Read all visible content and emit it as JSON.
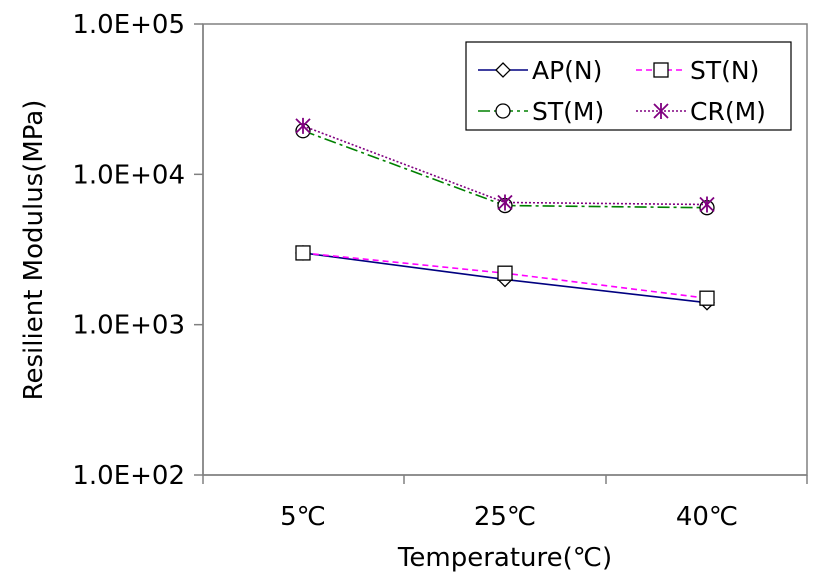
{
  "chart_data": {
    "type": "line",
    "title": "",
    "xlabel": "Temperature(℃)",
    "ylabel": "Resilient Modulus(MPa)",
    "yscale": "log",
    "ylim": [
      100,
      100000
    ],
    "categories": [
      "5℃",
      "25℃",
      "40℃"
    ],
    "y_tick_labels": [
      "1.0E+02",
      "1.0E+03",
      "1.0E+04",
      "1.0E+05"
    ],
    "y_tick_values": [
      100,
      1000,
      10000,
      100000
    ],
    "legend_position": "top-right",
    "series": [
      {
        "name": "AP(N)",
        "values": [
          3000,
          2000,
          1400
        ],
        "color": "#000080",
        "marker": "diamond",
        "dash": "solid"
      },
      {
        "name": "ST(N)",
        "values": [
          3000,
          2200,
          1500
        ],
        "color": "#ff00ff",
        "marker": "square",
        "dash": "dashed"
      },
      {
        "name": "ST(M)",
        "values": [
          19500,
          6200,
          6000
        ],
        "color": "#008000",
        "marker": "circle",
        "dash": "dashdot"
      },
      {
        "name": "CR(M)",
        "values": [
          21000,
          6500,
          6300
        ],
        "color": "#800080",
        "marker": "star",
        "dash": "dotted"
      }
    ]
  }
}
